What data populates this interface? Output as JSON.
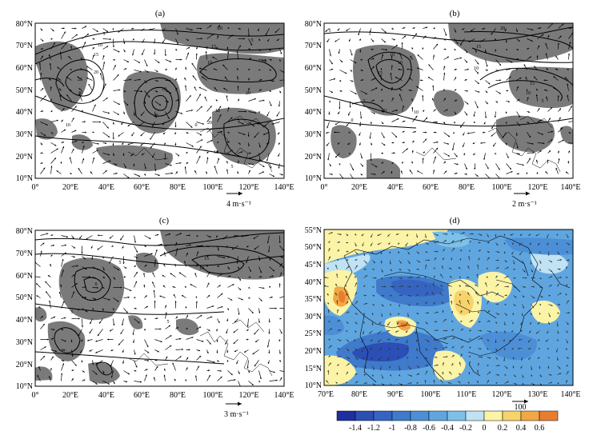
{
  "panels": [
    {
      "letter": "(a)",
      "lat_labels": [
        "80°N",
        "70°N",
        "60°N",
        "50°N",
        "40°N",
        "30°N",
        "20°N",
        "10°N"
      ],
      "lon_labels": [
        "0°",
        "20°E",
        "40°E",
        "60°E",
        "80°E",
        "100°E",
        "120°E",
        "140°E"
      ],
      "vector_scale": "4 m·s⁻¹",
      "contour_labels": [
        "5",
        "10",
        "15",
        "20",
        "25",
        "30",
        "20",
        "15",
        "10",
        "25",
        "10",
        "20",
        "15",
        "5",
        "0",
        "10",
        "5",
        "20",
        "10",
        "5",
        "10"
      ]
    },
    {
      "letter": "(b)",
      "lat_labels": [
        "80°N",
        "70°N",
        "60°N",
        "50°N",
        "40°N",
        "30°N",
        "20°N",
        "10°N"
      ],
      "lon_labels": [
        "0°",
        "20°E",
        "40°E",
        "60°E",
        "80°E",
        "100°E",
        "120°E",
        "140°E"
      ],
      "vector_scale": "2 m·s⁻¹",
      "contour_labels": [
        "5",
        "5",
        "10",
        "10",
        "15",
        "10",
        "10",
        "20",
        "15",
        "10",
        "15",
        "10",
        "5",
        "0",
        "5"
      ]
    },
    {
      "letter": "(c)",
      "lat_labels": [
        "80°N",
        "70°N",
        "60°N",
        "50°N",
        "40°N",
        "30°N",
        "20°N",
        "10°N"
      ],
      "lon_labels": [
        "0°",
        "20°E",
        "40°E",
        "60°E",
        "80°E",
        "100°E",
        "120°E",
        "140°E"
      ],
      "vector_scale": "3 m·s⁻¹",
      "contour_labels": [
        "15",
        "10",
        "5",
        "0",
        "5",
        "5"
      ]
    },
    {
      "letter": "(d)",
      "lat_labels": [
        "55°N",
        "50°N",
        "45°N",
        "40°N",
        "35°N",
        "30°N",
        "25°N",
        "20°N",
        "15°N",
        "10°N"
      ],
      "lon_labels": [
        "70°E",
        "80°E",
        "90°E",
        "100°E",
        "110°E",
        "120°E",
        "130°E",
        "140°E"
      ],
      "vector_scale": "100"
    }
  ],
  "colorbar": {
    "labels": [
      "-1.4",
      "-1.2",
      "-1",
      "-0.8",
      "-0.6",
      "-0.4",
      "-0.2",
      "0",
      "0.2",
      "0.4",
      "0.6"
    ],
    "colors": [
      "#1f2f9e",
      "#2b4fb5",
      "#3565c1",
      "#3f7acb",
      "#4c8fd6",
      "#5fa6e0",
      "#7dc0ea",
      "#bfe2f4",
      "#fbf3a6",
      "#f7d36b",
      "#f2a744",
      "#e97d2f"
    ]
  },
  "styles": {
    "shade_gray": "#7a7a7a",
    "land_line": "#000000"
  }
}
